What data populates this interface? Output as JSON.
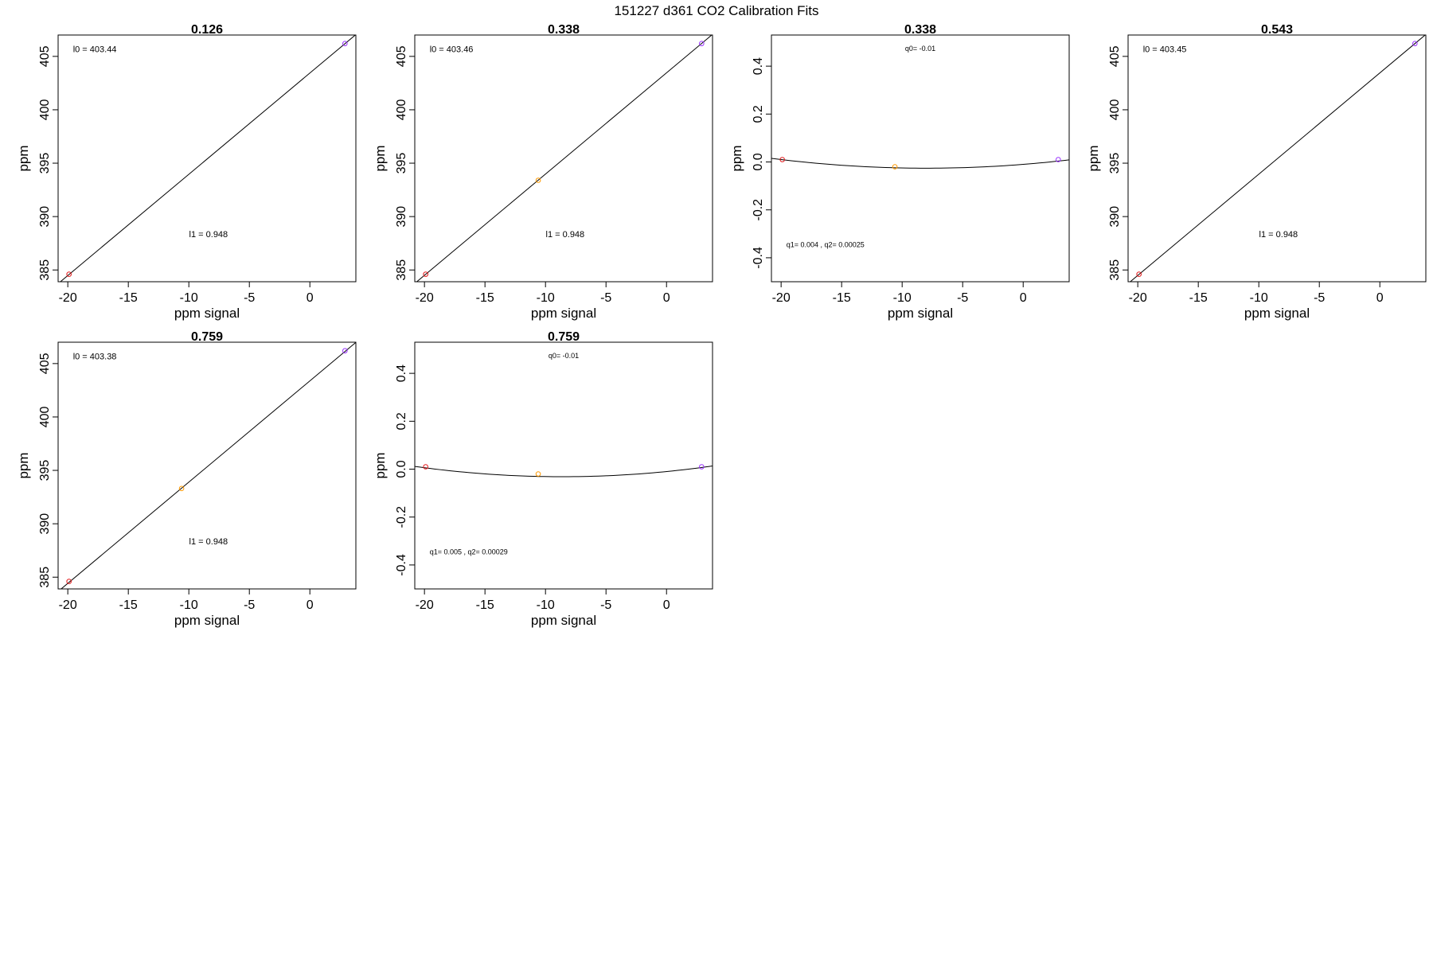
{
  "figure": {
    "title": "151227   d361   CO2 Calibration Fits"
  },
  "colors": {
    "line": "#000000",
    "axis": "#000000",
    "point_low": "#e31a1c",
    "point_mid": "#ff9900",
    "point_high": "#9933ff"
  },
  "chart_data": [
    {
      "type": "scatter",
      "title": "0.126",
      "xlabel": "ppm signal",
      "ylabel": "ppm",
      "xlim": [
        -20.8,
        3.8
      ],
      "ylim": [
        383.9,
        407.0
      ],
      "xticks": [
        -20,
        -15,
        -10,
        -5,
        0
      ],
      "yticks": [
        385,
        390,
        395,
        400,
        405
      ],
      "fit": "linear",
      "line": {
        "intercept": 403.44,
        "slope": 0.948
      },
      "points": [
        {
          "x": -19.9,
          "y": 384.6,
          "color": "#e31a1c"
        },
        {
          "x": 2.9,
          "y": 406.2,
          "color": "#9933ff"
        }
      ],
      "annotations": [
        "l0 =  403.44",
        "l1 =  0.948"
      ]
    },
    {
      "type": "scatter",
      "title": "0.338",
      "xlabel": "ppm signal",
      "ylabel": "ppm",
      "xlim": [
        -20.8,
        3.8
      ],
      "ylim": [
        383.9,
        407.0
      ],
      "xticks": [
        -20,
        -15,
        -10,
        -5,
        0
      ],
      "yticks": [
        385,
        390,
        395,
        400,
        405
      ],
      "fit": "linear",
      "line": {
        "intercept": 403.46,
        "slope": 0.948
      },
      "points": [
        {
          "x": -19.9,
          "y": 384.6,
          "color": "#e31a1c"
        },
        {
          "x": -10.6,
          "y": 393.4,
          "color": "#ff9900"
        },
        {
          "x": 2.9,
          "y": 406.2,
          "color": "#9933ff"
        }
      ],
      "annotations": [
        "l0 =  403.46",
        "l1 =  0.948"
      ]
    },
    {
      "type": "scatter",
      "title": "0.338",
      "xlabel": "ppm signal",
      "ylabel": "ppm",
      "xlim": [
        -20.8,
        3.8
      ],
      "ylim": [
        -0.5,
        0.53
      ],
      "xticks": [
        -20,
        -15,
        -10,
        -5,
        0
      ],
      "yticks": [
        -0.4,
        -0.2,
        0.0,
        0.2,
        0.4
      ],
      "yticklabels": [
        "-0.4",
        "-0.2",
        "0.0",
        "0.2",
        "0.4"
      ],
      "fit": "quadratic",
      "curve": {
        "q0": -0.01,
        "q1": 0.004,
        "q2": 0.00025
      },
      "points": [
        {
          "x": -19.9,
          "y": 0.01,
          "color": "#e31a1c"
        },
        {
          "x": -10.6,
          "y": -0.02,
          "color": "#ff9900"
        },
        {
          "x": 2.9,
          "y": 0.01,
          "color": "#9933ff"
        }
      ],
      "annotations": [
        "q0= -0.01",
        "q1= 0.004 , q2= 0.00025"
      ]
    },
    {
      "type": "scatter",
      "title": "0.543",
      "xlabel": "ppm signal",
      "ylabel": "ppm",
      "xlim": [
        -20.8,
        3.8
      ],
      "ylim": [
        383.9,
        407.0
      ],
      "xticks": [
        -20,
        -15,
        -10,
        -5,
        0
      ],
      "yticks": [
        385,
        390,
        395,
        400,
        405
      ],
      "fit": "linear",
      "line": {
        "intercept": 403.45,
        "slope": 0.948
      },
      "points": [
        {
          "x": -19.9,
          "y": 384.6,
          "color": "#e31a1c"
        },
        {
          "x": 2.9,
          "y": 406.2,
          "color": "#9933ff"
        }
      ],
      "annotations": [
        "l0 =  403.45",
        "l1 =  0.948"
      ]
    },
    {
      "type": "scatter",
      "title": "0.759",
      "xlabel": "ppm signal",
      "ylabel": "ppm",
      "xlim": [
        -20.8,
        3.8
      ],
      "ylim": [
        383.9,
        407.0
      ],
      "xticks": [
        -20,
        -15,
        -10,
        -5,
        0
      ],
      "yticks": [
        385,
        390,
        395,
        400,
        405
      ],
      "fit": "linear",
      "line": {
        "intercept": 403.38,
        "slope": 0.948
      },
      "points": [
        {
          "x": -19.9,
          "y": 384.6,
          "color": "#e31a1c"
        },
        {
          "x": -10.6,
          "y": 393.3,
          "color": "#ff9900"
        },
        {
          "x": 2.9,
          "y": 406.2,
          "color": "#9933ff"
        }
      ],
      "annotations": [
        "l0 =  403.38",
        "l1 =  0.948"
      ]
    },
    {
      "type": "scatter",
      "title": "0.759",
      "xlabel": "ppm signal",
      "ylabel": "ppm",
      "xlim": [
        -20.8,
        3.8
      ],
      "ylim": [
        -0.5,
        0.53
      ],
      "xticks": [
        -20,
        -15,
        -10,
        -5,
        0
      ],
      "yticks": [
        -0.4,
        -0.2,
        0.0,
        0.2,
        0.4
      ],
      "yticklabels": [
        "-0.4",
        "-0.2",
        "0.0",
        "0.2",
        "0.4"
      ],
      "fit": "quadratic",
      "curve": {
        "q0": -0.01,
        "q1": 0.005,
        "q2": 0.00029
      },
      "points": [
        {
          "x": -19.9,
          "y": 0.01,
          "color": "#e31a1c"
        },
        {
          "x": -10.6,
          "y": -0.02,
          "color": "#ff9900"
        },
        {
          "x": 2.9,
          "y": 0.01,
          "color": "#9933ff"
        }
      ],
      "annotations": [
        "q0= -0.01",
        "q1= 0.005 , q2= 0.00029"
      ]
    }
  ]
}
